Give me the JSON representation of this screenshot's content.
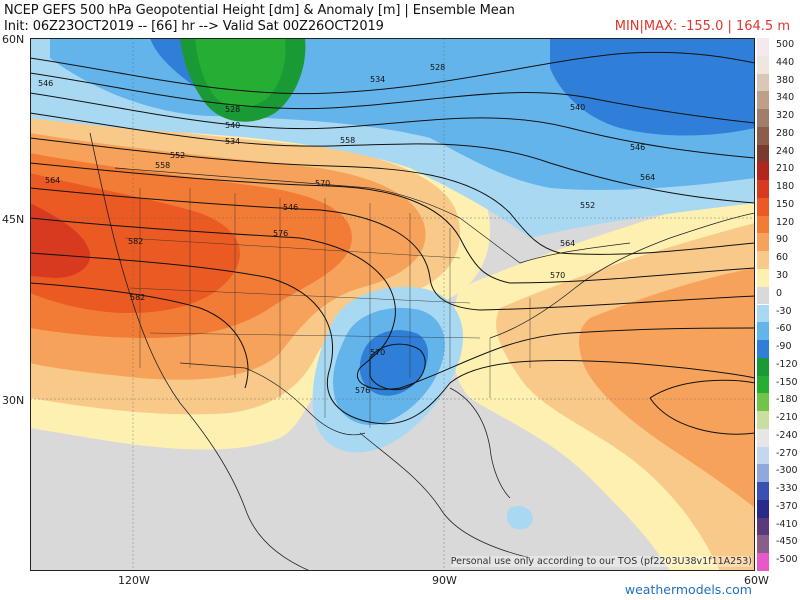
{
  "header": {
    "title_line1": "NCEP GEFS 500 hPa Geopotential Height [dm] & Anomaly [m] | Ensemble Mean",
    "title_line2": "Init: 06Z23OCT2019 -- [66] hr --> Valid Sat 00Z26OCT2019",
    "minmax": "MIN|MAX: -155.0 | 164.5 m"
  },
  "map_axes": {
    "lat_labels": [
      "60N",
      "45N",
      "30N"
    ],
    "lon_labels": [
      "120W",
      "90W",
      "60W"
    ]
  },
  "contour_labels": [
    "546",
    "540",
    "534",
    "528",
    "552",
    "558",
    "564",
    "570",
    "576",
    "582",
    "582",
    "546",
    "528",
    "534",
    "540",
    "546",
    "552",
    "564",
    "570",
    "576",
    "558",
    "564",
    "570"
  ],
  "colorbar": {
    "labels": [
      "500",
      "440",
      "380",
      "340",
      "320",
      "280",
      "240",
      "210",
      "180",
      "150",
      "120",
      "90",
      "60",
      "30",
      "0",
      "-30",
      "-60",
      "-90",
      "-120",
      "-150",
      "-180",
      "-210",
      "-240",
      "-270",
      "-300",
      "-330",
      "-370",
      "-410",
      "-450",
      "-500"
    ],
    "colors": [
      "#f6e9ec",
      "#efe6e0",
      "#d9c7b8",
      "#bda08a",
      "#a07e6a",
      "#8a5e4a",
      "#7a3b2e",
      "#b3261e",
      "#d83a1f",
      "#ea5a22",
      "#f27b35",
      "#f7a25a",
      "#f9c98a",
      "#fdf0b0",
      "#d9d9d9",
      "#a9d9f2",
      "#63b4ea",
      "#2f7fd9",
      "#1a9a35",
      "#26ad33",
      "#71c34a",
      "#c9dfa1",
      "#e6e6e6",
      "#c6d6ee",
      "#8fa9de",
      "#3c4fb3",
      "#2a2a8a",
      "#5a3a7a",
      "#8a5e8a",
      "#e858c9"
    ]
  },
  "footer": {
    "tos": "Personal use only according to our TOS (pf2203U38v1f11A253)",
    "brand": "weathermodels.com"
  }
}
